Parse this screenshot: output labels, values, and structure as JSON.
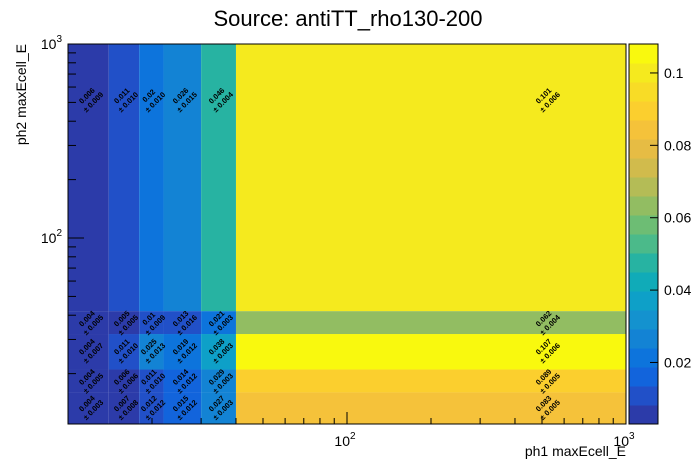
{
  "chart_data": {
    "type": "heatmap",
    "title": "Source: antiTT_rho130-200",
    "x_label": "ph1 maxEcell_E",
    "y_label": "ph2 maxEcell_E",
    "log_x": true,
    "log_y": true,
    "x_edges": [
      10,
      14,
      18,
      22,
      30,
      40,
      1000
    ],
    "y_edges": [
      11,
      16,
      21,
      32,
      42,
      1000
    ],
    "xlim": [
      10,
      1000
    ],
    "ylim": [
      11,
      1000
    ],
    "xticks": [
      {
        "value": 100,
        "label": "10",
        "exponent": "2"
      },
      {
        "value": 1000,
        "label": "10",
        "exponent": "3"
      }
    ],
    "yticks": [
      {
        "value": 100,
        "label": "10",
        "exponent": "2"
      },
      {
        "value": 1000,
        "label": "10",
        "exponent": "3"
      }
    ],
    "z": [
      [
        0.004,
        0.007,
        0.012,
        0.015,
        0.027,
        0.083
      ],
      [
        0.004,
        0.006,
        0.011,
        0.014,
        0.029,
        0.089
      ],
      [
        0.004,
        0.011,
        0.025,
        0.019,
        0.038,
        0.107
      ],
      [
        0.004,
        0.005,
        0.01,
        0.013,
        0.021,
        0.062
      ],
      [
        0.006,
        0.011,
        0.02,
        0.026,
        0.046,
        0.101
      ]
    ],
    "error_labels": [
      [
        "± 0.003",
        "± 0.008",
        "± 0.012",
        "± 0.012",
        "± 0.003",
        "± 0.005"
      ],
      [
        "± 0.005",
        "± 0.006",
        "± 0.010",
        "± 0.012",
        "± 0.003",
        "± 0.005"
      ],
      [
        "± 0.007",
        "± 0.010",
        "± 0.013",
        "± 0.012",
        "± 0.003",
        "± 0.006"
      ],
      [
        "± 0.005",
        "± 0.005",
        "± 0.009",
        "± 0.016",
        "± 0.003",
        "± 0.004"
      ],
      [
        "± 0.009",
        "± 0.010",
        "± 0.010",
        "± 0.015",
        "± 0.004",
        "± 0.006"
      ]
    ],
    "zlim": [
      0.003,
      0.108
    ],
    "zticks": [
      0.02,
      0.04,
      0.06,
      0.08,
      0.1
    ],
    "palette": [
      "#2c3ba9",
      "#2150c8",
      "#1264dc",
      "#0d74dc",
      "#1383d4",
      "#1492cf",
      "#0ea0c8",
      "#10abb8",
      "#27b3a2",
      "#4bba8a",
      "#6dbd74",
      "#92bd62",
      "#b4bc56",
      "#d1bb4c",
      "#e6bc44",
      "#f5c23a",
      "#fbcf2e",
      "#f8dc26",
      "#f5ea1e",
      "#f9f90e"
    ]
  }
}
